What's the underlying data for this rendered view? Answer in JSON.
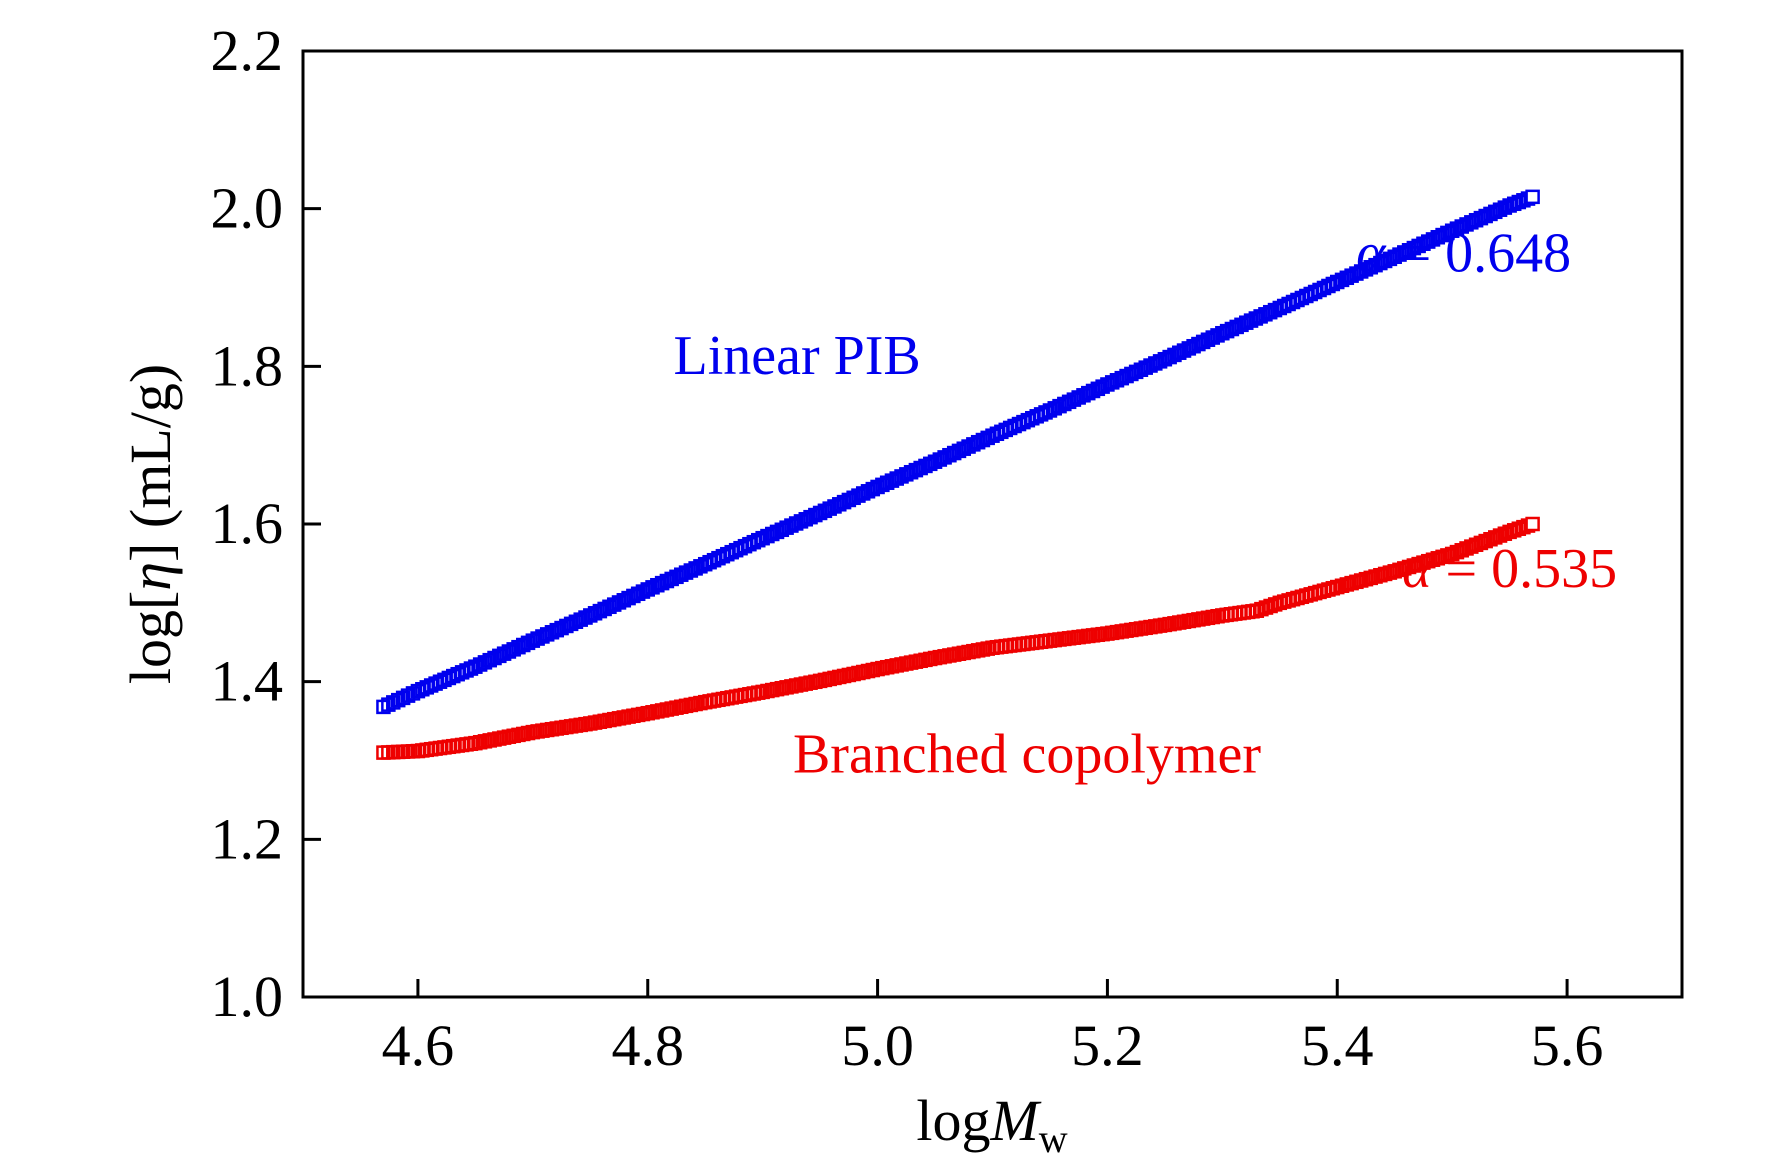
{
  "chart_data": {
    "type": "scatter",
    "xlabel": {
      "prefix": "log",
      "var": "M",
      "sub": "w"
    },
    "ylabel": {
      "prefix": "log[",
      "var": "η",
      "suffix": "] (mL/g)"
    },
    "xlim": [
      4.5,
      5.7
    ],
    "ylim": [
      1.0,
      2.2
    ],
    "x_ticks": [
      "4.6",
      "4.8",
      "5.0",
      "5.2",
      "5.4",
      "5.6"
    ],
    "y_ticks": [
      "1.0",
      "1.2",
      "1.4",
      "1.6",
      "1.8",
      "2.0",
      "2.2"
    ],
    "grid": false,
    "series": [
      {
        "name": "Linear PIB",
        "color": "#0000ee",
        "marker": "open-square",
        "x": [
          4.57,
          4.6,
          4.65,
          4.7,
          4.75,
          4.8,
          4.85,
          4.9,
          4.95,
          5.0,
          5.05,
          5.1,
          5.15,
          5.2,
          5.25,
          5.3,
          5.35,
          5.4,
          5.45,
          5.5,
          5.55,
          5.57
        ],
        "y": [
          1.368,
          1.388,
          1.419,
          1.452,
          1.484,
          1.517,
          1.549,
          1.582,
          1.614,
          1.647,
          1.679,
          1.712,
          1.744,
          1.777,
          1.809,
          1.842,
          1.874,
          1.907,
          1.939,
          1.972,
          2.004,
          2.015
        ]
      },
      {
        "name": "Branched copolymer",
        "color": "#ee0000",
        "marker": "open-square",
        "x": [
          4.57,
          4.6,
          4.65,
          4.7,
          4.75,
          4.8,
          4.85,
          4.9,
          4.95,
          5.0,
          5.05,
          5.1,
          5.15,
          5.2,
          5.25,
          5.3,
          5.33,
          5.35,
          5.4,
          5.45,
          5.5,
          5.55,
          5.57
        ],
        "y": [
          1.31,
          1.312,
          1.322,
          1.336,
          1.347,
          1.36,
          1.374,
          1.387,
          1.401,
          1.416,
          1.43,
          1.443,
          1.452,
          1.461,
          1.472,
          1.484,
          1.49,
          1.5,
          1.52,
          1.54,
          1.562,
          1.59,
          1.6
        ]
      }
    ],
    "annotations": [
      {
        "text": "Linear PIB",
        "color": "#0000ee",
        "x": 4.93,
        "y": 1.79,
        "anchor": "middle"
      },
      {
        "text": "Branched copolymer",
        "color": "#ee0000",
        "x": 5.13,
        "y": 1.285,
        "anchor": "middle"
      },
      {
        "symbol": "α",
        "value": " = 0.648",
        "color": "#0000ee",
        "x": 5.51,
        "y": 1.92,
        "anchor": "middle"
      },
      {
        "symbol": "α",
        "value": " = 0.535",
        "color": "#ee0000",
        "x": 5.55,
        "y": 1.52,
        "anchor": "middle"
      }
    ]
  }
}
